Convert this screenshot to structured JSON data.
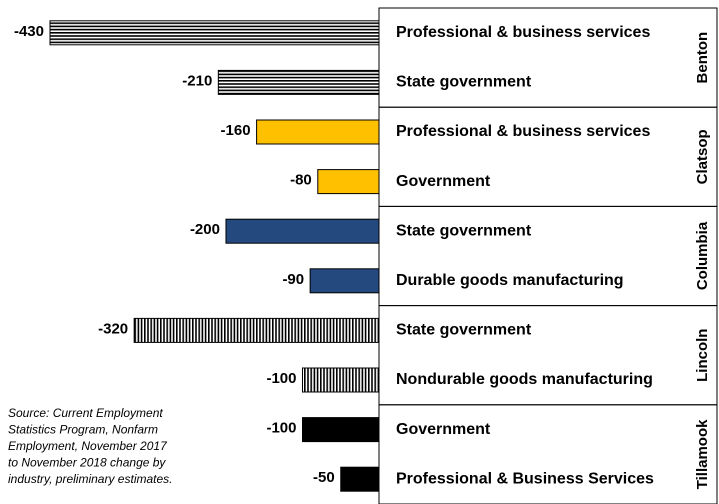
{
  "chart_data": {
    "type": "bar",
    "orientation": "horizontal",
    "xlim": [
      -430,
      0
    ],
    "groups": [
      {
        "name": "Benton",
        "color": "#000000",
        "pattern": "horizontal-stripes",
        "categories": [
          "Professional & business services",
          "State government"
        ],
        "values": [
          -430,
          -210
        ]
      },
      {
        "name": "Clatsop",
        "color": "#FFC000",
        "pattern": "solid",
        "categories": [
          "Professional & business services",
          "Government"
        ],
        "values": [
          -160,
          -80
        ]
      },
      {
        "name": "Columbia",
        "color": "#24497F",
        "pattern": "solid",
        "categories": [
          "State government",
          "Durable goods manufacturing"
        ],
        "values": [
          -200,
          -90
        ]
      },
      {
        "name": "Lincoln",
        "color": "#000000",
        "pattern": "vertical-stripes",
        "categories": [
          "State government",
          "Nondurable goods manufacturing"
        ],
        "values": [
          -320,
          -100
        ]
      },
      {
        "name": "Tillamook",
        "color": "#000000",
        "pattern": "solid",
        "categories": [
          "Government",
          "Professional & Business Services"
        ],
        "values": [
          -100,
          -50
        ]
      }
    ],
    "source": [
      "Source: Current Employment",
      "Statistics Program, Nonfarm",
      "Employment, November 2017",
      "to November 2018 change by",
      "industry, preliminary estimates."
    ]
  }
}
